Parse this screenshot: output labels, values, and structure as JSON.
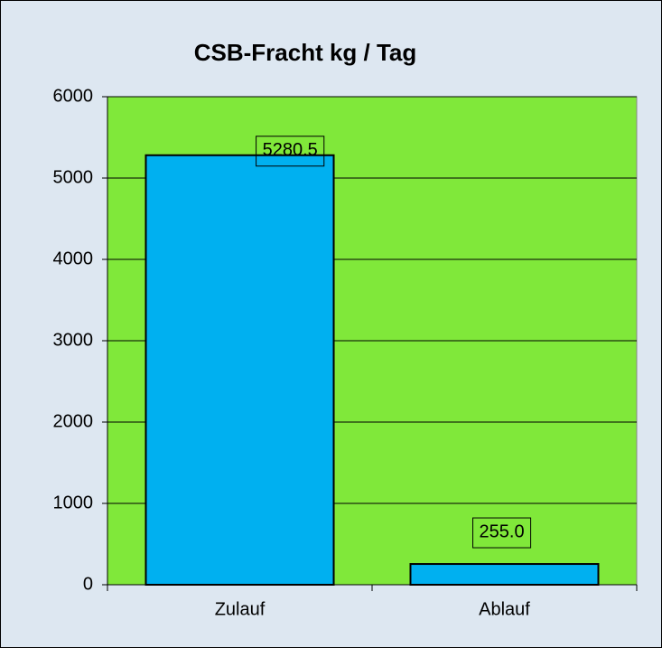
{
  "chart_data": {
    "type": "bar",
    "title": "CSB-Fracht kg / Tag",
    "categories": [
      "Zulauf",
      "Ablauf"
    ],
    "values": [
      5280.5,
      255.0
    ],
    "value_labels": [
      "5280.5",
      "255.0"
    ],
    "color": "#00b0f0",
    "plot_background": "#80e83a",
    "background": "#dde7f1",
    "ylim": [
      0,
      6000
    ],
    "yticks": [
      0,
      1000,
      2000,
      3000,
      4000,
      5000,
      6000
    ],
    "grid": true
  }
}
